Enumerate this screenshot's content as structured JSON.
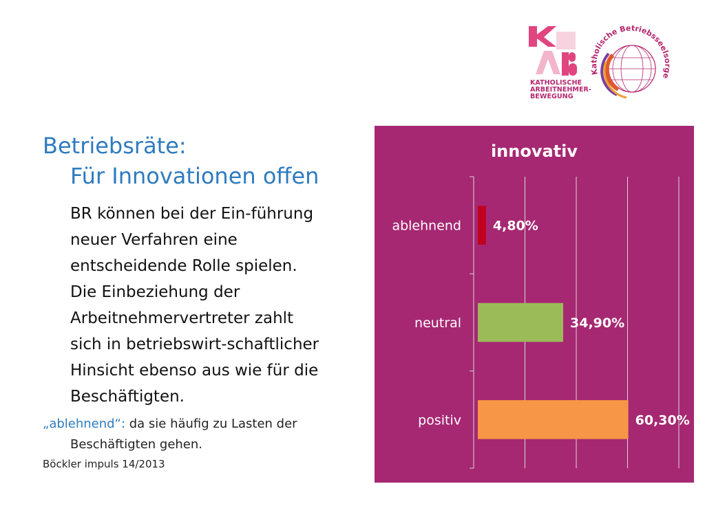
{
  "slide": {
    "title_line1": "Betriebsräte:",
    "title_line2": "Für Innovationen offen",
    "body_lines": [
      "BR können bei der Ein-führung",
      "neuer Verfahren eine",
      "entscheidende Rolle spielen.",
      "Die Einbeziehung der",
      "Arbeitnehmervertreter zahlt",
      "sich in betriebswirt-schaftlicher",
      "Hinsicht ebenso aus wie für die",
      "Beschäftigten."
    ],
    "note_quote": "„ablehnend“:",
    "note_text": "da sie häufig zu Lasten der",
    "note_cont": "Beschäftigten gehen.",
    "source": "Böckler impuls 14/2013"
  },
  "logos": {
    "kab_letters": "KAB",
    "kab_text_lines": [
      "KATHOLISCHE",
      "ARBEITNEHMER-",
      "BEWEGUNG"
    ],
    "circle_text": "Katholische Betriebsseelsorge",
    "kab_color": "#e0457f",
    "circle_color": "#b5286f"
  },
  "chart_data": {
    "type": "bar",
    "orientation": "horizontal",
    "title": "innovativ",
    "categories": [
      "ablehnend",
      "neutral",
      "positiv"
    ],
    "values": [
      4.8,
      34.9,
      60.3
    ],
    "value_labels": [
      "4,80%",
      "34,90%",
      "60,30%"
    ],
    "colors": [
      "#c0001f",
      "#9bbb59",
      "#f79646"
    ],
    "xlim": [
      0,
      80
    ],
    "grid": true,
    "background": "#a62872",
    "text_color": "#ffffff"
  }
}
